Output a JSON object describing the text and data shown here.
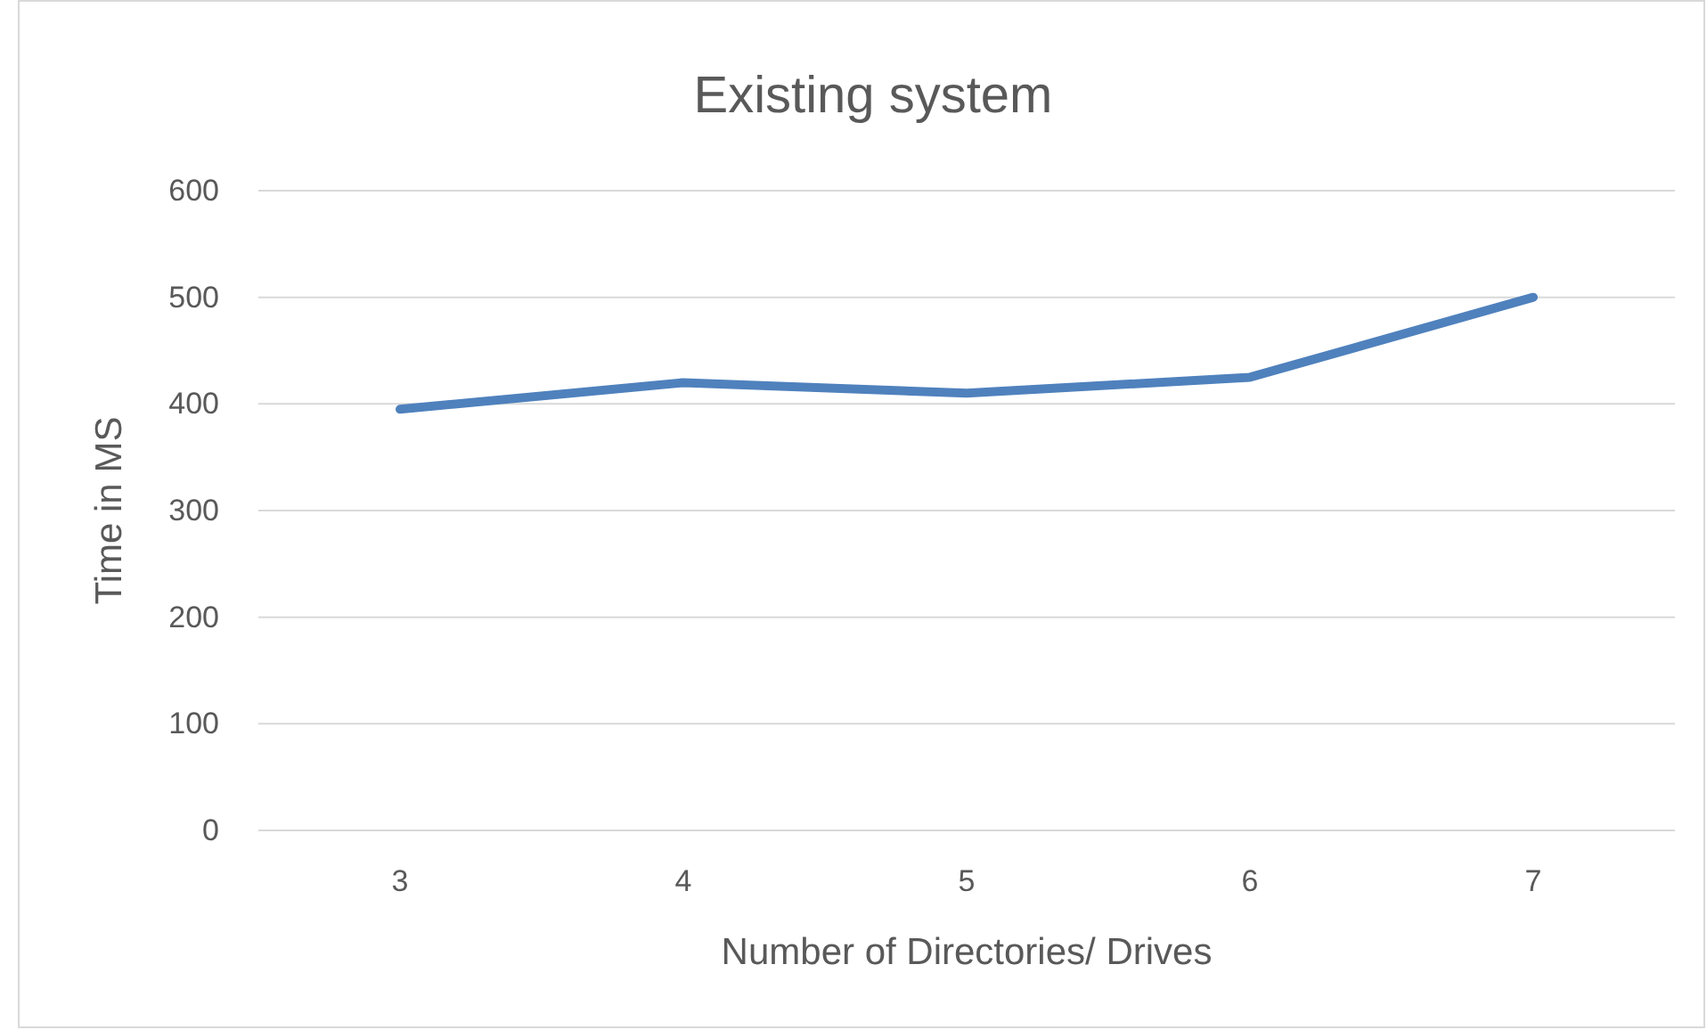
{
  "chart_data": {
    "type": "line",
    "title": "Existing system",
    "xlabel": "Number of Directories/ Drives",
    "ylabel": "Time in MS",
    "categories": [
      "3",
      "4",
      "5",
      "6",
      "7"
    ],
    "series": [
      {
        "color": "#4f81bd",
        "values": [
          395,
          420,
          410,
          425,
          500
        ]
      }
    ],
    "ylim": [
      0,
      600
    ],
    "yticks": [
      0,
      100,
      200,
      300,
      400,
      500,
      600
    ],
    "grid": "y",
    "marker": "none",
    "line_style": "solid"
  }
}
